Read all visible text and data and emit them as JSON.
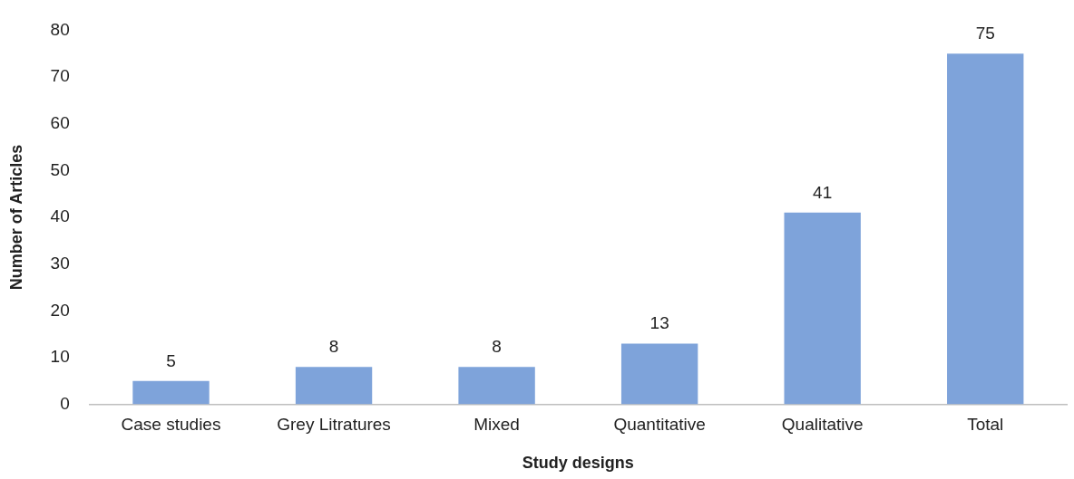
{
  "chart_data": {
    "type": "bar",
    "xlabel": "Study designs",
    "ylabel": "Number of Articles",
    "categories": [
      "Case studies",
      "Grey Litratures",
      "Mixed",
      "Quantitative",
      "Qualitative",
      "Total"
    ],
    "values": [
      5,
      8,
      8,
      13,
      41,
      75
    ],
    "color": "#7ea3da",
    "ylim": [
      0,
      80
    ],
    "yticks": [
      0,
      10,
      20,
      30,
      40,
      50,
      60,
      70,
      80
    ],
    "grid": false,
    "legend": false,
    "data_labels": true
  }
}
